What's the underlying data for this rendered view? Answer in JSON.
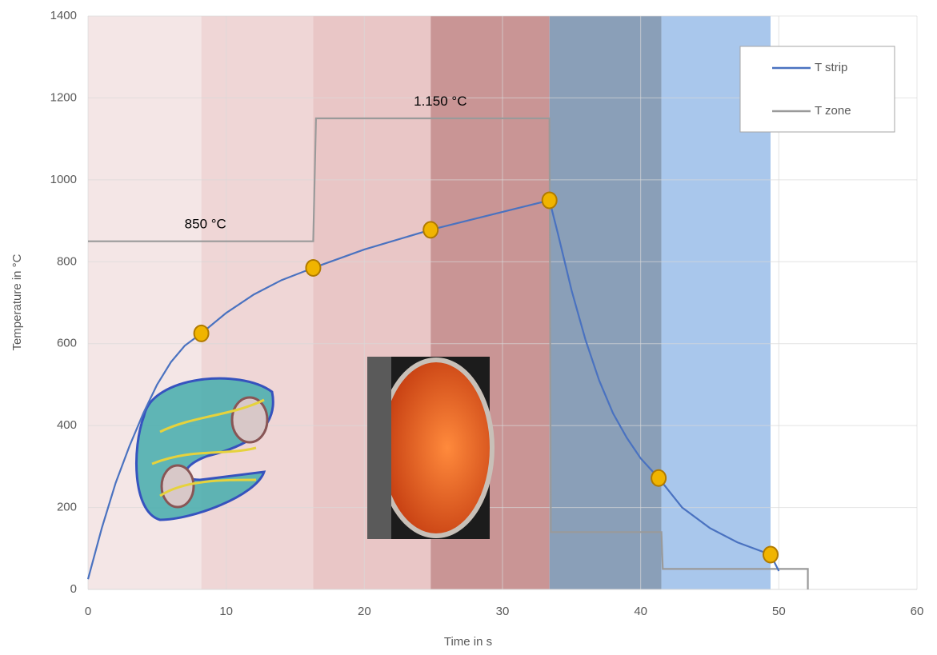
{
  "chart_data": {
    "type": "line",
    "xlabel": "Time in s",
    "ylabel": "Temperature in °C",
    "xlim": [
      0,
      60
    ],
    "ylim": [
      0,
      1400
    ],
    "xticks": [
      0,
      10,
      20,
      30,
      40,
      50,
      60
    ],
    "yticks": [
      0,
      200,
      400,
      600,
      800,
      1000,
      1200,
      1400
    ],
    "grid": true,
    "legend": "upper right",
    "bands": [
      {
        "x0": 0,
        "x1": 8.2,
        "color": "#f4e6e6"
      },
      {
        "x0": 8.2,
        "x1": 16.3,
        "color": "#efd6d6"
      },
      {
        "x0": 16.3,
        "x1": 24.8,
        "color": "#e9c6c6"
      },
      {
        "x0": 24.8,
        "x1": 33.4,
        "color": "#c99595"
      },
      {
        "x0": 33.4,
        "x1": 41.5,
        "color": "#8a9fb8"
      },
      {
        "x0": 41.5,
        "x1": 49.4,
        "color": "#a9c7ec"
      }
    ],
    "series": [
      {
        "name": "T strip",
        "color": "#4a72c0",
        "x": [
          0,
          1,
          2,
          3,
          4,
          5,
          6,
          7,
          8.2,
          10,
          12,
          14,
          16.3,
          20,
          24.8,
          28,
          31,
          33.4,
          34,
          35,
          36,
          37,
          38,
          39,
          40,
          41.3,
          43,
          45,
          47,
          49.4,
          50
        ],
        "values": [
          25,
          150,
          260,
          350,
          430,
          500,
          555,
          595,
          625,
          675,
          720,
          755,
          785,
          830,
          878,
          905,
          930,
          950,
          870,
          730,
          610,
          510,
          430,
          370,
          320,
          272,
          200,
          150,
          115,
          85,
          45
        ]
      },
      {
        "name": "T zone",
        "color": "#9a9a9a",
        "x": [
          0,
          16.3,
          16.5,
          33.4,
          33.5,
          41.5,
          41.6,
          52.1,
          52.1
        ],
        "values": [
          850,
          850,
          1150,
          1150,
          140,
          140,
          50,
          50,
          0
        ]
      }
    ],
    "points": {
      "color": "#f0b400",
      "x": [
        8.2,
        16.3,
        24.8,
        33.4,
        41.3,
        49.4
      ],
      "values": [
        625,
        785,
        878,
        950,
        272,
        85
      ]
    },
    "annotations": [
      {
        "text": "850 °C",
        "x": 8.5,
        "y": 890
      },
      {
        "text": "1.150 °C",
        "x": 25.5,
        "y": 1190
      }
    ]
  }
}
